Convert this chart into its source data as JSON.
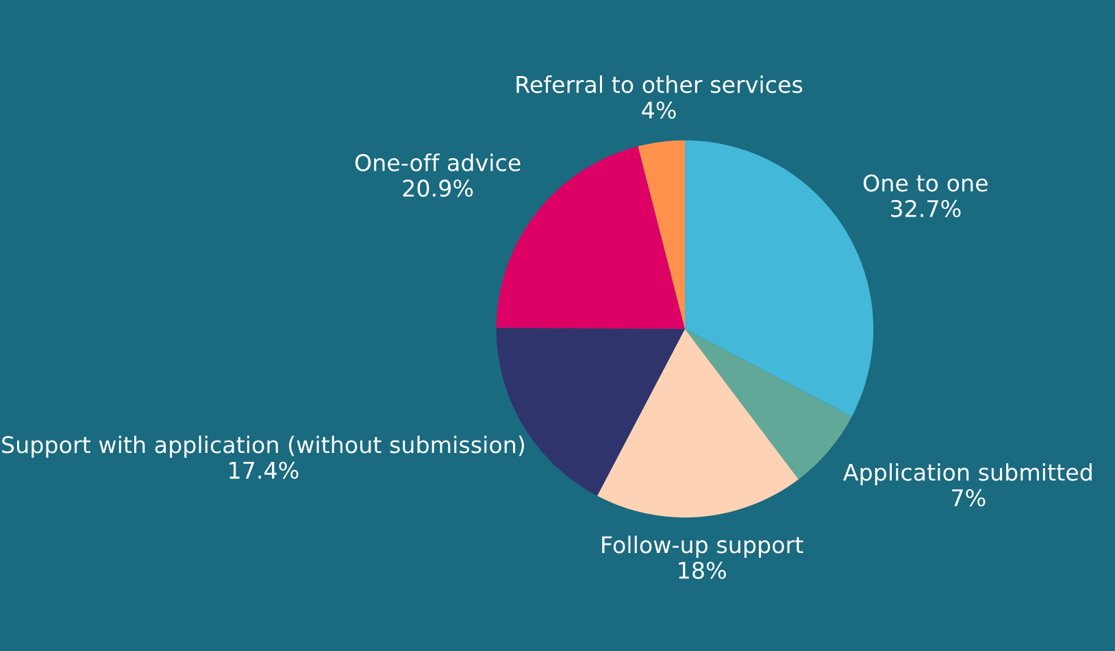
{
  "chart_data": {
    "type": "pie",
    "categories": [
      "One to one",
      "Application submitted",
      "Follow-up support",
      "Support with application (without submission)",
      "One-off advice",
      "Referral to other services"
    ],
    "values": [
      32.7,
      7,
      18,
      17.4,
      20.9,
      4
    ],
    "value_labels": [
      "32.7%",
      "7%",
      "18%",
      "17.4%",
      "20.9%",
      "4%"
    ],
    "colors": [
      "#43b8d8",
      "#62a899",
      "#fed3b5",
      "#30346c",
      "#dd0065",
      "#fe914b"
    ],
    "legend": false
  }
}
